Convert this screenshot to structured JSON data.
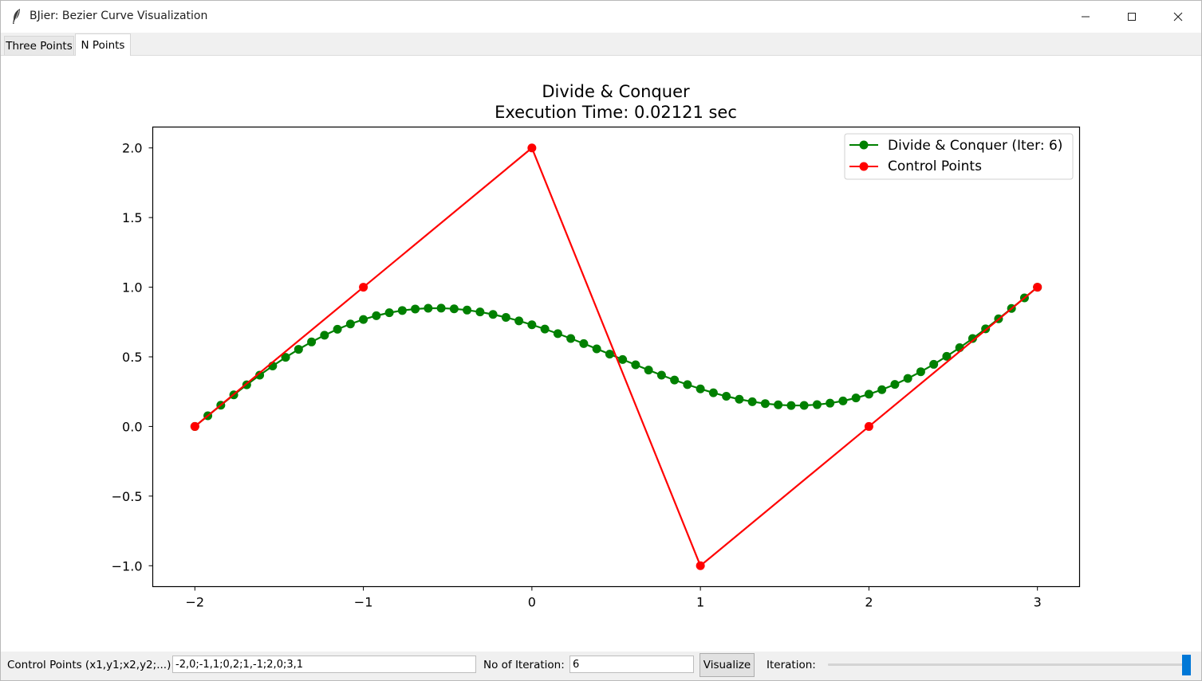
{
  "window": {
    "title": "BJier: Bezier Curve Visualization",
    "icon": "feather-icon"
  },
  "tabs": [
    {
      "label": "Three Points",
      "selected": false
    },
    {
      "label": "N Points",
      "selected": true
    }
  ],
  "controls": {
    "control_points_label": "Control Points (x1,y1;x2,y2;...):",
    "control_points_value": "-2,0;-1,1;0,2;1,-1;2,0;3,1",
    "iterations_label": "No of Iteration:",
    "iterations_value": "6",
    "visualize_label": "Visualize",
    "iteration_slider_label": "Iteration:",
    "iteration_slider_value": 6,
    "iteration_slider_max": 6
  },
  "colors": {
    "accent": "#0078d7",
    "curve": "#008000",
    "control": "#ff0000"
  },
  "chart_data": {
    "type": "line",
    "title": "Divide & Conquer",
    "subtitle": "Execution Time: 0.02121 sec",
    "xlabel": "",
    "ylabel": "",
    "xlim": [
      -2.25,
      3.25
    ],
    "ylim": [
      -1.15,
      2.15
    ],
    "xticks": [
      {
        "value": -2,
        "label": "−2"
      },
      {
        "value": -1,
        "label": "−1"
      },
      {
        "value": 0,
        "label": "0"
      },
      {
        "value": 1,
        "label": "1"
      },
      {
        "value": 2,
        "label": "2"
      },
      {
        "value": 3,
        "label": "3"
      }
    ],
    "yticks": [
      {
        "value": -1.0,
        "label": "−1.0"
      },
      {
        "value": -0.5,
        "label": "−0.5"
      },
      {
        "value": 0.0,
        "label": "0.0"
      },
      {
        "value": 0.5,
        "label": "0.5"
      },
      {
        "value": 1.0,
        "label": "1.0"
      },
      {
        "value": 1.5,
        "label": "1.5"
      },
      {
        "value": 2.0,
        "label": "2.0"
      }
    ],
    "grid": false,
    "legend_position": "top-right",
    "series": [
      {
        "name": "Divide & Conquer (Iter: 6)",
        "color": "#008000",
        "marker": "circle",
        "curve_type": "bezier",
        "control_points": [
          [
            -2,
            0
          ],
          [
            -1,
            1
          ],
          [
            0,
            2
          ],
          [
            1,
            -1
          ],
          [
            2,
            0
          ],
          [
            3,
            1
          ]
        ],
        "points": 65
      },
      {
        "name": "Control Points",
        "color": "#ff0000",
        "marker": "circle",
        "x": [
          -2,
          -1,
          0,
          1,
          2,
          3
        ],
        "y": [
          0,
          1,
          2,
          -1,
          0,
          1
        ]
      }
    ]
  }
}
